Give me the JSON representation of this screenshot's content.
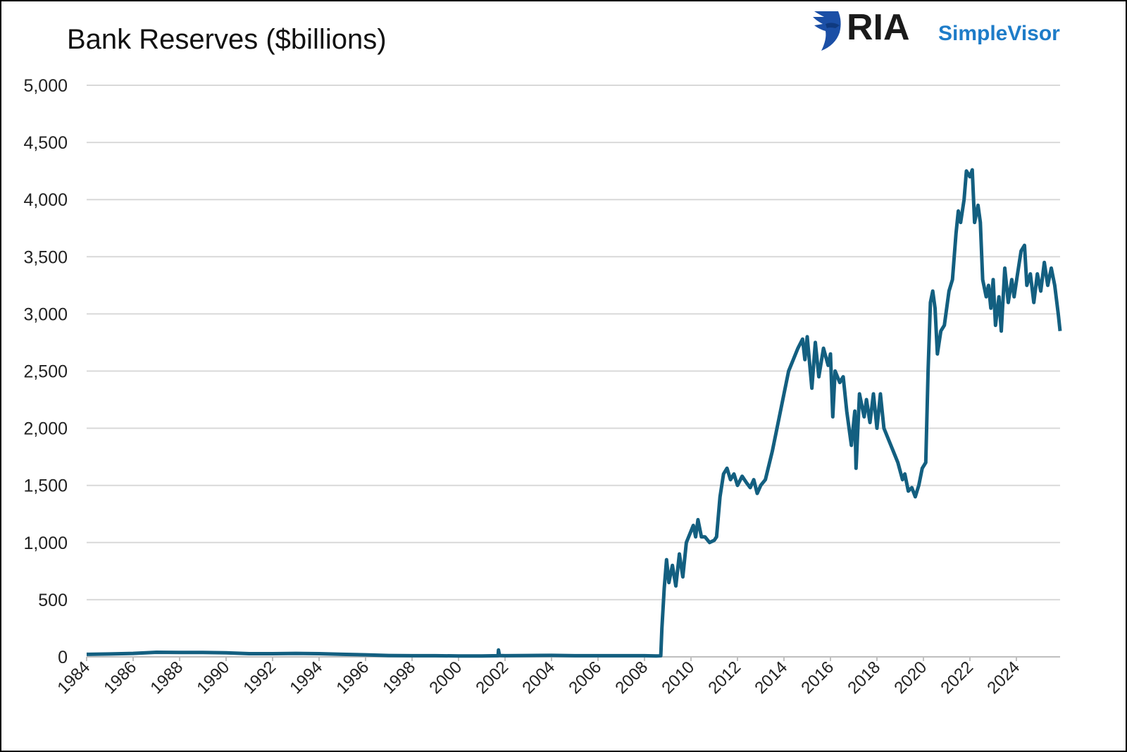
{
  "logo": {
    "primary": "RIA",
    "secondary": "SimpleVisor",
    "brand_colors": {
      "ria": "#1a1a1a",
      "simplevisor": "#1e7cc8",
      "eagle": "#1b4fa6"
    }
  },
  "chart_data": {
    "type": "line",
    "title": "Bank Reserves ($billions)",
    "xlabel": "",
    "ylabel": "",
    "xlim": [
      1984,
      2025.88
    ],
    "ylim": [
      0,
      5000
    ],
    "grid": "horizontal",
    "legend": "none",
    "line_color": "#135f80",
    "y_ticks": [
      0,
      500,
      1000,
      1500,
      2000,
      2500,
      3000,
      3500,
      4000,
      4500,
      5000
    ],
    "y_tick_labels": [
      "0",
      "500",
      "1,000",
      "1,500",
      "2,000",
      "2,500",
      "3,000",
      "3,500",
      "4,000",
      "4,500",
      "5,000"
    ],
    "x_tick_labels": [
      "1984",
      "1986",
      "1988",
      "1990",
      "1992",
      "1994",
      "1996",
      "1998",
      "2000",
      "2002",
      "2004",
      "2006",
      "2008",
      "2010",
      "2012",
      "2014",
      "2016",
      "2018",
      "2020",
      "2022",
      "2024"
    ],
    "series": [
      {
        "x": [
          1984,
          1985,
          1986,
          1987,
          1988,
          1989,
          1990,
          1991,
          1992,
          1993,
          1994,
          1995,
          1996,
          1997,
          1998,
          1999,
          2000,
          2001,
          2001.7,
          2001.72,
          2001.76,
          2002,
          2003,
          2004,
          2005,
          2006,
          2007,
          2008,
          2008.5,
          2008.7,
          2008.75,
          2008.85,
          2008.95,
          2009.05,
          2009.2,
          2009.35,
          2009.5,
          2009.65,
          2009.8,
          2009.9,
          2010.1,
          2010.2,
          2010.3,
          2010.45,
          2010.6,
          2010.8,
          2011.0,
          2011.1,
          2011.25,
          2011.4,
          2011.55,
          2011.7,
          2011.85,
          2012.0,
          2012.2,
          2012.4,
          2012.55,
          2012.7,
          2012.85,
          2013.0,
          2013.2,
          2013.5,
          2013.8,
          2014.0,
          2014.2,
          2014.4,
          2014.6,
          2014.8,
          2014.9,
          2015.0,
          2015.2,
          2015.35,
          2015.5,
          2015.7,
          2015.9,
          2016.0,
          2016.1,
          2016.2,
          2016.4,
          2016.55,
          2016.7,
          2016.8,
          2016.9,
          2017.05,
          2017.1,
          2017.25,
          2017.45,
          2017.55,
          2017.7,
          2017.85,
          2018.0,
          2018.15,
          2018.3,
          2018.5,
          2018.7,
          2018.9,
          2019.1,
          2019.2,
          2019.35,
          2019.5,
          2019.65,
          2019.8,
          2019.95,
          2020.1,
          2020.2,
          2020.3,
          2020.4,
          2020.5,
          2020.6,
          2020.75,
          2020.9,
          2021.1,
          2021.25,
          2021.4,
          2021.5,
          2021.6,
          2021.75,
          2021.85,
          2022.0,
          2022.1,
          2022.2,
          2022.35,
          2022.45,
          2022.55,
          2022.7,
          2022.8,
          2022.9,
          2023.0,
          2023.1,
          2023.25,
          2023.35,
          2023.5,
          2023.65,
          2023.8,
          2023.9,
          2024.05,
          2024.2,
          2024.35,
          2024.45,
          2024.6,
          2024.75,
          2024.9,
          2025.05,
          2025.2,
          2025.35,
          2025.5,
          2025.65,
          2025.8,
          2025.88
        ],
        "values": [
          22,
          25,
          30,
          40,
          38,
          38,
          35,
          28,
          28,
          30,
          28,
          22,
          18,
          12,
          10,
          10,
          8,
          8,
          10,
          60,
          12,
          10,
          12,
          13,
          10,
          10,
          10,
          10,
          8,
          10,
          250,
          600,
          850,
          650,
          800,
          620,
          900,
          700,
          1000,
          1050,
          1150,
          1050,
          1200,
          1050,
          1050,
          1000,
          1020,
          1050,
          1400,
          1600,
          1650,
          1550,
          1600,
          1500,
          1580,
          1520,
          1480,
          1550,
          1430,
          1500,
          1550,
          1800,
          2100,
          2300,
          2500,
          2600,
          2700,
          2780,
          2600,
          2800,
          2350,
          2750,
          2450,
          2700,
          2550,
          2650,
          2100,
          2500,
          2400,
          2450,
          2150,
          2000,
          1850,
          2150,
          1650,
          2300,
          2100,
          2250,
          2050,
          2300,
          2000,
          2300,
          2000,
          1900,
          1800,
          1700,
          1550,
          1600,
          1450,
          1480,
          1400,
          1500,
          1650,
          1700,
          2500,
          3100,
          3200,
          3050,
          2650,
          2850,
          2900,
          3200,
          3300,
          3700,
          3900,
          3800,
          4000,
          4250,
          4200,
          4260,
          3800,
          3950,
          3800,
          3300,
          3150,
          3250,
          3050,
          3300,
          2900,
          3150,
          2850,
          3400,
          3100,
          3300,
          3150,
          3350,
          3550,
          3600,
          3250,
          3350,
          3100,
          3350,
          3200,
          3450,
          3250,
          3400,
          3250,
          3000,
          2850
        ]
      }
    ]
  }
}
